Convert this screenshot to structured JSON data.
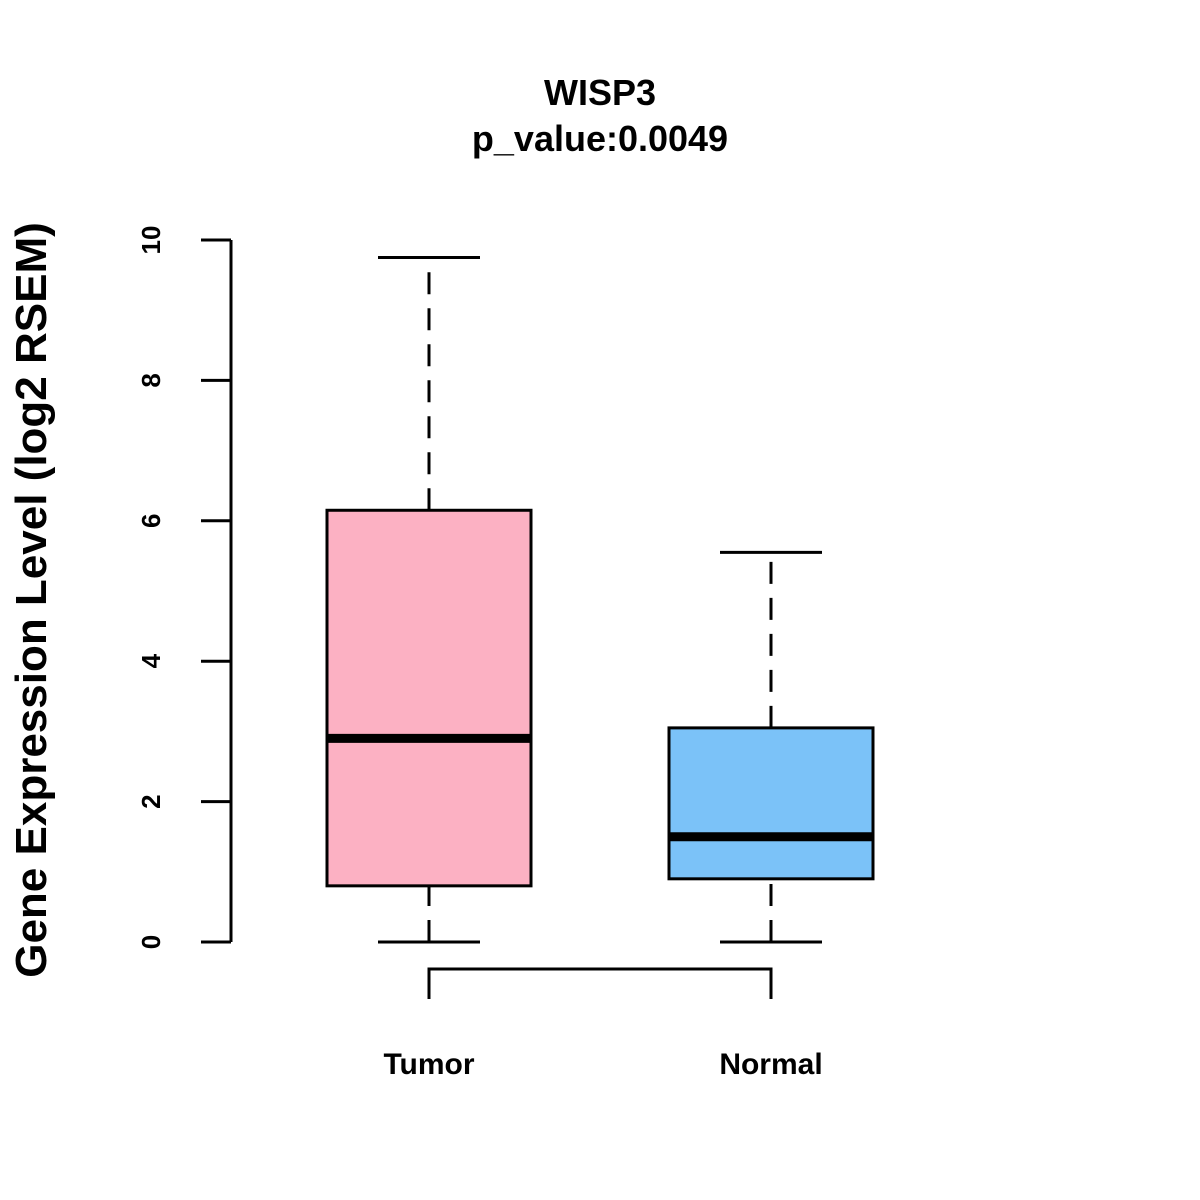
{
  "chart_data": {
    "type": "boxplot",
    "title": "WISP3",
    "subtitle": "p_value:0.0049",
    "xlabel": "",
    "ylabel": "Gene Expression Level (log2 RSEM)",
    "ylim": [
      0,
      10
    ],
    "yticks": [
      0,
      2,
      4,
      6,
      8,
      10
    ],
    "ytick_labels": [
      "0",
      "2",
      "4",
      "6",
      "8",
      "10"
    ],
    "categories": [
      "Tumor",
      "Normal"
    ],
    "boxes": [
      {
        "name": "Tumor",
        "min": 0.0,
        "q1": 0.8,
        "median": 2.9,
        "q3": 6.15,
        "max": 9.75,
        "color": "#FCB1C3"
      },
      {
        "name": "Normal",
        "min": 0.0,
        "q1": 0.9,
        "median": 1.5,
        "q3": 3.05,
        "max": 5.55,
        "color": "#7BC2F8"
      }
    ],
    "comparison_bracket": [
      "Tumor",
      "Normal"
    ],
    "grid": false
  }
}
